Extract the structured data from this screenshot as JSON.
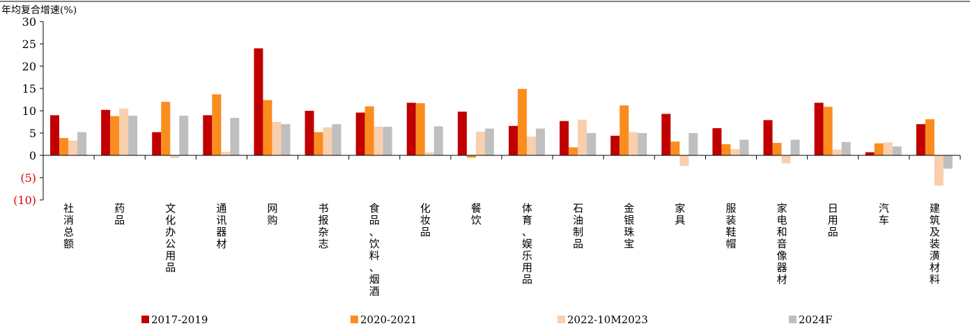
{
  "chart_data": {
    "type": "bar",
    "ylabel": "年均复合增速(%)",
    "ylim": [
      -10,
      30
    ],
    "yticks": [
      30,
      25,
      20,
      15,
      10,
      5,
      0,
      -5,
      -10
    ],
    "ytick_labels": [
      "30",
      "25",
      "20",
      "15",
      "10",
      "5",
      "0",
      "(5)",
      "(10)"
    ],
    "negative_tick_color": "#e00000",
    "grid": false,
    "legend_position": "bottom",
    "categories": [
      "社消总额",
      "药品",
      "文化办公用品",
      "通讯器材",
      "网购",
      "书报杂志",
      "食品、饮料、烟酒",
      "化妆品",
      "餐饮",
      "体育、娱乐用品",
      "石油制品",
      "金银珠宝",
      "家具",
      "服装鞋帽",
      "家电和音像器材",
      "日用品",
      "汽车",
      "建筑及装潢材料"
    ],
    "series": [
      {
        "name": "2017-2019",
        "color": "#c00000",
        "values": [
          9.0,
          10.2,
          5.2,
          9.0,
          24.0,
          10.0,
          9.6,
          11.8,
          9.8,
          6.6,
          7.7,
          4.4,
          9.3,
          6.1,
          7.9,
          11.8,
          0.7,
          7.0
        ]
      },
      {
        "name": "2020-2021",
        "color": "#fb8c1e",
        "values": [
          3.9,
          8.8,
          12.0,
          13.7,
          12.4,
          5.2,
          11.0,
          11.7,
          -0.5,
          14.9,
          1.8,
          11.2,
          3.1,
          2.5,
          2.8,
          10.9,
          2.7,
          8.1
        ]
      },
      {
        "name": "2022-10M2023",
        "color": "#f9cfae",
        "values": [
          3.3,
          10.5,
          -0.6,
          0.8,
          7.5,
          6.3,
          6.4,
          0.7,
          5.3,
          4.2,
          8.0,
          5.2,
          -2.4,
          1.4,
          -1.8,
          1.3,
          2.9,
          -6.8
        ]
      },
      {
        "name": "2024F",
        "color": "#bfbfbf",
        "values": [
          5.2,
          8.9,
          8.9,
          8.4,
          7.0,
          7.0,
          6.4,
          6.5,
          6.0,
          6.0,
          5.0,
          5.0,
          5.0,
          3.5,
          3.5,
          3.0,
          2.0,
          -3.0
        ]
      }
    ]
  }
}
